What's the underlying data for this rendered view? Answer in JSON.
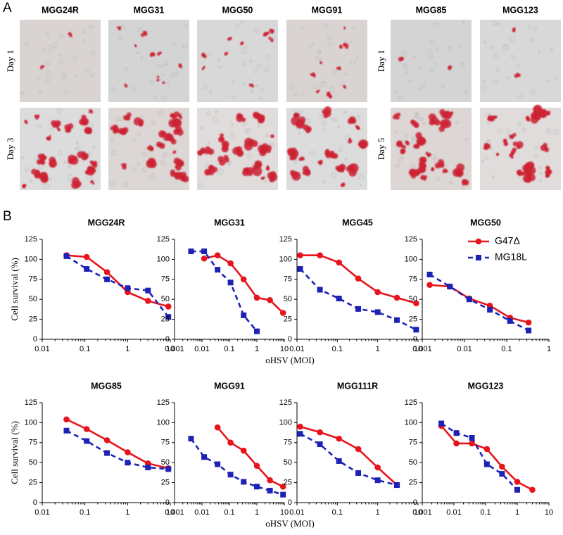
{
  "panel_a": {
    "label": "A",
    "groups": [
      {
        "columns": [
          "MGG24R",
          "MGG31",
          "MGG50",
          "MGG91"
        ],
        "rows": [
          "Day 1",
          "Day 3"
        ]
      },
      {
        "columns": [
          "MGG85",
          "MGG123"
        ],
        "rows": [
          "Day 1",
          "Day 5"
        ]
      }
    ]
  },
  "panel_b": {
    "label": "B"
  },
  "chart_data": [
    {
      "type": "line",
      "title": "MGG24R",
      "ylabel": "Cell survival (%)",
      "xscale": "log",
      "xlim": [
        0.01,
        10
      ],
      "xticks": [
        0.01,
        0.1,
        1,
        10
      ],
      "ylim": [
        0,
        125
      ],
      "yticks": [
        0,
        25,
        50,
        75,
        100,
        125
      ],
      "series": [
        {
          "color": "#e8141b",
          "marker": "circle",
          "dash": false,
          "x": [
            0.037,
            0.11,
            0.33,
            1,
            3,
            9
          ],
          "values": [
            105,
            103,
            84,
            59,
            48,
            41
          ]
        },
        {
          "color": "#1c22b4",
          "marker": "square",
          "dash": true,
          "x": [
            0.037,
            0.11,
            0.33,
            1,
            3,
            9
          ],
          "values": [
            104,
            88,
            75,
            64,
            61,
            28
          ]
        }
      ]
    },
    {
      "type": "line",
      "title": "MGG31",
      "xlabel": "oHSV (MOI)",
      "xscale": "log",
      "xlim": [
        0.001,
        10
      ],
      "xticks": [
        0.001,
        0.01,
        0.1,
        1,
        10
      ],
      "ylim": [
        0,
        125
      ],
      "yticks": [
        0,
        25,
        50,
        75,
        100,
        125
      ],
      "series": [
        {
          "color": "#e8141b",
          "marker": "circle",
          "dash": false,
          "x": [
            0.012,
            0.037,
            0.11,
            0.33,
            1,
            3,
            9
          ],
          "values": [
            101,
            105,
            95,
            75,
            52,
            49,
            33
          ]
        },
        {
          "color": "#1c22b4",
          "marker": "square",
          "dash": true,
          "x": [
            0.004,
            0.012,
            0.037,
            0.11,
            0.33,
            1
          ],
          "values": [
            110,
            110,
            87,
            71,
            30,
            10
          ]
        }
      ]
    },
    {
      "type": "line",
      "title": "MGG45",
      "xscale": "log",
      "xlim": [
        0.01,
        10
      ],
      "xticks": [
        0.01,
        0.1,
        1,
        10
      ],
      "ylim": [
        0,
        125
      ],
      "yticks": [
        0,
        25,
        50,
        75,
        100,
        125
      ],
      "series": [
        {
          "color": "#e8141b",
          "marker": "circle",
          "dash": false,
          "x": [
            0.012,
            0.037,
            0.11,
            0.33,
            1,
            3,
            9
          ],
          "values": [
            105,
            105,
            96,
            76,
            59,
            52,
            45
          ]
        },
        {
          "color": "#1c22b4",
          "marker": "square",
          "dash": true,
          "x": [
            0.012,
            0.037,
            0.11,
            0.33,
            1,
            3,
            9
          ],
          "values": [
            88,
            62,
            51,
            38,
            34,
            24,
            12
          ]
        }
      ]
    },
    {
      "type": "line",
      "title": "MGG50",
      "xscale": "log",
      "xlim": [
        0.001,
        1
      ],
      "xticks": [
        0.001,
        0.01,
        0.1,
        1
      ],
      "ylim": [
        0,
        125
      ],
      "yticks": [
        0,
        25,
        50,
        75,
        100,
        125
      ],
      "series": [
        {
          "name": "G47Δ",
          "color": "#e8141b",
          "marker": "circle",
          "dash": false,
          "x": [
            0.0015,
            0.0045,
            0.013,
            0.04,
            0.12,
            0.33
          ],
          "values": [
            68,
            66,
            51,
            42,
            27,
            21
          ]
        },
        {
          "name": "MG18L",
          "color": "#1c22b4",
          "marker": "square",
          "dash": true,
          "x": [
            0.0015,
            0.0045,
            0.013,
            0.04,
            0.12,
            0.33
          ],
          "values": [
            81,
            66,
            50,
            37,
            23,
            11
          ]
        }
      ]
    },
    {
      "type": "line",
      "title": "MGG85",
      "ylabel": "Cell survival (%)",
      "xscale": "log",
      "xlim": [
        0.01,
        10
      ],
      "xticks": [
        0.01,
        0.1,
        1,
        10
      ],
      "ylim": [
        0,
        125
      ],
      "yticks": [
        0,
        25,
        50,
        75,
        100,
        125
      ],
      "series": [
        {
          "color": "#e8141b",
          "marker": "circle",
          "dash": false,
          "x": [
            0.037,
            0.11,
            0.33,
            1,
            3,
            9
          ],
          "values": [
            104,
            92,
            78,
            63,
            49,
            43
          ]
        },
        {
          "color": "#1c22b4",
          "marker": "square",
          "dash": true,
          "x": [
            0.037,
            0.11,
            0.33,
            1,
            3,
            9
          ],
          "values": [
            90,
            77,
            62,
            50,
            44,
            42
          ]
        }
      ]
    },
    {
      "type": "line",
      "title": "MGG91",
      "xlabel": "oHSV (MOI)",
      "xscale": "log",
      "xlim": [
        0.001,
        10
      ],
      "xticks": [
        0.001,
        0.01,
        0.1,
        1,
        10
      ],
      "ylim": [
        0,
        125
      ],
      "yticks": [
        0,
        25,
        50,
        75,
        100,
        125
      ],
      "series": [
        {
          "color": "#e8141b",
          "marker": "circle",
          "dash": false,
          "x": [
            0.037,
            0.11,
            0.33,
            1,
            3,
            9
          ],
          "values": [
            94,
            75,
            65,
            46,
            28,
            20
          ]
        },
        {
          "color": "#1c22b4",
          "marker": "square",
          "dash": true,
          "x": [
            0.004,
            0.012,
            0.037,
            0.11,
            0.33,
            1,
            3,
            9
          ],
          "values": [
            80,
            57,
            48,
            35,
            26,
            20,
            15,
            10
          ]
        }
      ]
    },
    {
      "type": "line",
      "title": "MGG111R",
      "xscale": "log",
      "xlim": [
        0.01,
        10
      ],
      "xticks": [
        0.01,
        0.1,
        1,
        10
      ],
      "ylim": [
        0,
        125
      ],
      "yticks": [
        0,
        25,
        50,
        75,
        100,
        125
      ],
      "series": [
        {
          "color": "#e8141b",
          "marker": "circle",
          "dash": false,
          "x": [
            0.012,
            0.037,
            0.11,
            0.33,
            1,
            3
          ],
          "values": [
            95,
            88,
            80,
            67,
            44,
            22
          ]
        },
        {
          "color": "#1c22b4",
          "marker": "square",
          "dash": true,
          "x": [
            0.012,
            0.037,
            0.11,
            0.33,
            1,
            3
          ],
          "values": [
            86,
            73,
            52,
            37,
            28,
            22
          ]
        }
      ]
    },
    {
      "type": "line",
      "title": "MGG123",
      "xscale": "log",
      "xlim": [
        0.001,
        10
      ],
      "xticks": [
        0.001,
        0.01,
        0.1,
        1,
        10
      ],
      "ylim": [
        0,
        125
      ],
      "yticks": [
        0,
        25,
        50,
        75,
        100,
        125
      ],
      "series": [
        {
          "color": "#e8141b",
          "marker": "circle",
          "dash": false,
          "x": [
            0.004,
            0.012,
            0.037,
            0.11,
            0.33,
            1,
            3
          ],
          "values": [
            96,
            74,
            74,
            67,
            45,
            26,
            16
          ]
        },
        {
          "color": "#1c22b4",
          "marker": "square",
          "dash": true,
          "x": [
            0.004,
            0.012,
            0.037,
            0.11,
            0.33,
            1
          ],
          "values": [
            99,
            87,
            81,
            48,
            36,
            16
          ]
        }
      ]
    }
  ]
}
